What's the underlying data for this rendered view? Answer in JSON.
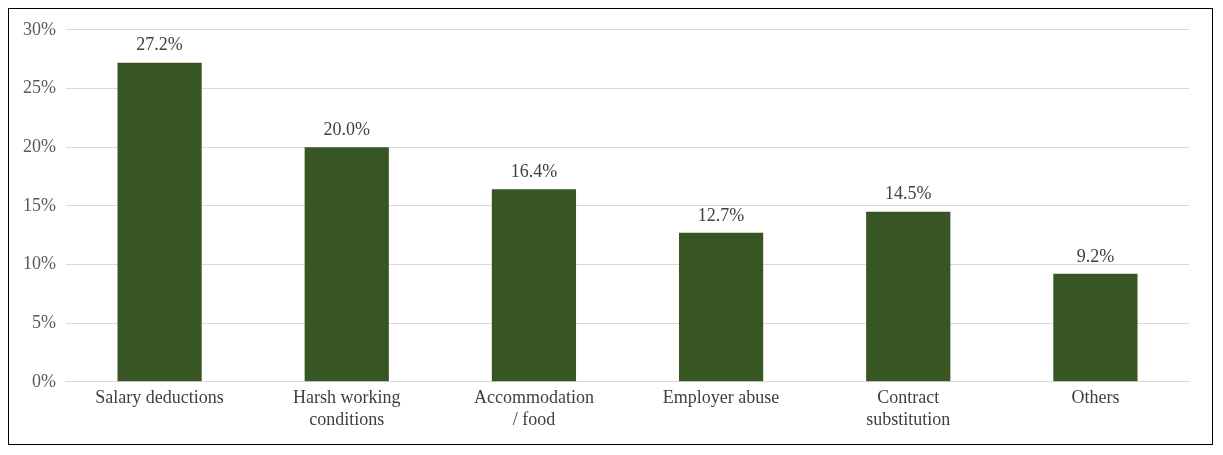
{
  "chart_data": {
    "type": "bar",
    "categories": [
      "Salary deductions",
      "Harsh working\nconditions",
      "Accommodation\n/ food",
      "Employer abuse",
      "Contract\nsubstitution",
      "Others"
    ],
    "values": [
      27.2,
      20.0,
      16.4,
      12.7,
      14.5,
      9.2
    ],
    "value_labels": [
      "27.2%",
      "20.0%",
      "16.4%",
      "12.7%",
      "14.5%",
      "9.2%"
    ],
    "color": "#375623",
    "ylim": [
      0,
      30
    ],
    "yticks": [
      {
        "value": 0,
        "label": "0%"
      },
      {
        "value": 5,
        "label": "5%"
      },
      {
        "value": 10,
        "label": "10%"
      },
      {
        "value": 15,
        "label": "15%"
      },
      {
        "value": 20,
        "label": "20%"
      },
      {
        "value": 25,
        "label": "25%"
      },
      {
        "value": 30,
        "label": "30%"
      }
    ],
    "grid": "y",
    "legend": false
  }
}
